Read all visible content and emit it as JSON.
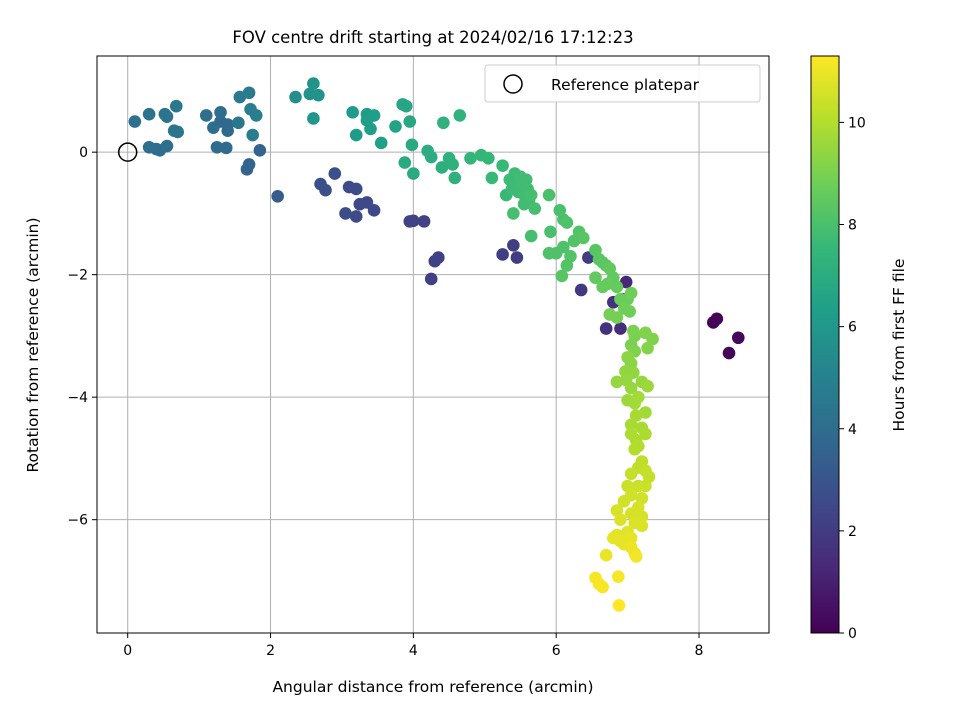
{
  "chart_data": {
    "type": "scatter",
    "title": "FOV centre drift starting at 2024/02/16 17:12:23",
    "xlabel": "Angular distance from reference (arcmin)",
    "ylabel": "Rotation from reference (arcmin)",
    "xlim": [
      -0.43,
      8.98
    ],
    "ylim": [
      -7.85,
      1.57
    ],
    "xticks": [
      0,
      2,
      4,
      6,
      8
    ],
    "yticks": [
      -6,
      -4,
      -2,
      0
    ],
    "grid": true,
    "legend": {
      "position": "top-right",
      "label": "Reference platepar"
    },
    "reference_point": {
      "x": 0.0,
      "y": 0.0
    },
    "colorbar": {
      "label": "Hours from first FF file",
      "range": [
        0,
        11.3
      ],
      "ticks": [
        0,
        2,
        4,
        6,
        8,
        10
      ],
      "colormap": "viridis",
      "stops": [
        "#440154",
        "#482878",
        "#3e4989",
        "#31688e",
        "#26828e",
        "#1f9e89",
        "#35b779",
        "#6ece58",
        "#b5de2b",
        "#fde725"
      ]
    },
    "points": [
      {
        "x": 8.25,
        "y": -2.72,
        "t": 0.1
      },
      {
        "x": 8.2,
        "y": -2.78,
        "t": 0.1
      },
      {
        "x": 8.55,
        "y": -3.03,
        "t": 0.2
      },
      {
        "x": 8.42,
        "y": -3.28,
        "t": 0.2
      },
      {
        "x": 6.98,
        "y": -2.12,
        "t": 1.3
      },
      {
        "x": 6.93,
        "y": -2.4,
        "t": 1.5
      },
      {
        "x": 6.8,
        "y": -2.45,
        "t": 1.6
      },
      {
        "x": 6.9,
        "y": -2.88,
        "t": 1.5
      },
      {
        "x": 6.7,
        "y": -2.88,
        "t": 1.6
      },
      {
        "x": 6.35,
        "y": -2.25,
        "t": 1.9
      },
      {
        "x": 6.45,
        "y": -1.72,
        "t": 2.0
      },
      {
        "x": 5.45,
        "y": -1.72,
        "t": 2.0
      },
      {
        "x": 5.4,
        "y": -1.52,
        "t": 2.1
      },
      {
        "x": 5.25,
        "y": -1.67,
        "t": 2.1
      },
      {
        "x": 4.25,
        "y": -2.07,
        "t": 2.2
      },
      {
        "x": 4.3,
        "y": -1.78,
        "t": 2.2
      },
      {
        "x": 4.35,
        "y": -1.72,
        "t": 2.2
      },
      {
        "x": 4.15,
        "y": -1.13,
        "t": 2.3
      },
      {
        "x": 3.95,
        "y": -1.13,
        "t": 2.3
      },
      {
        "x": 4.0,
        "y": -1.12,
        "t": 2.3
      },
      {
        "x": 3.45,
        "y": -0.95,
        "t": 2.5
      },
      {
        "x": 3.35,
        "y": -0.82,
        "t": 2.5
      },
      {
        "x": 3.25,
        "y": -0.85,
        "t": 2.5
      },
      {
        "x": 3.2,
        "y": -0.6,
        "t": 2.6
      },
      {
        "x": 3.1,
        "y": -0.57,
        "t": 2.6
      },
      {
        "x": 3.05,
        "y": -1.0,
        "t": 2.6
      },
      {
        "x": 3.2,
        "y": -1.05,
        "t": 2.6
      },
      {
        "x": 2.9,
        "y": -0.35,
        "t": 2.8
      },
      {
        "x": 2.7,
        "y": -0.52,
        "t": 2.8
      },
      {
        "x": 2.77,
        "y": -0.62,
        "t": 2.8
      },
      {
        "x": 2.1,
        "y": -0.72,
        "t": 3.3
      },
      {
        "x": 1.7,
        "y": -0.2,
        "t": 3.6
      },
      {
        "x": 1.67,
        "y": -0.28,
        "t": 3.6
      },
      {
        "x": 1.85,
        "y": 0.03,
        "t": 3.6
      },
      {
        "x": 1.4,
        "y": 0.35,
        "t": 3.8
      },
      {
        "x": 1.3,
        "y": 0.5,
        "t": 3.8
      },
      {
        "x": 1.4,
        "y": 0.45,
        "t": 3.8
      },
      {
        "x": 1.25,
        "y": 0.08,
        "t": 3.9
      },
      {
        "x": 1.38,
        "y": 0.07,
        "t": 3.9
      },
      {
        "x": 1.2,
        "y": 0.4,
        "t": 4.0
      },
      {
        "x": 1.3,
        "y": 0.65,
        "t": 4.0
      },
      {
        "x": 1.1,
        "y": 0.6,
        "t": 4.1
      },
      {
        "x": 0.45,
        "y": 0.03,
        "t": 4.0
      },
      {
        "x": 0.4,
        "y": 0.05,
        "t": 4.0
      },
      {
        "x": 0.55,
        "y": 0.1,
        "t": 4.1
      },
      {
        "x": 0.3,
        "y": 0.08,
        "t": 4.1
      },
      {
        "x": 0.1,
        "y": 0.5,
        "t": 4.2
      },
      {
        "x": 0.3,
        "y": 0.62,
        "t": 4.3
      },
      {
        "x": 0.52,
        "y": 0.62,
        "t": 4.3
      },
      {
        "x": 0.55,
        "y": 0.58,
        "t": 4.3
      },
      {
        "x": 0.65,
        "y": 0.35,
        "t": 4.4
      },
      {
        "x": 0.7,
        "y": 0.33,
        "t": 4.4
      },
      {
        "x": 0.68,
        "y": 0.75,
        "t": 4.5
      },
      {
        "x": 1.55,
        "y": 0.48,
        "t": 4.5
      },
      {
        "x": 1.57,
        "y": 0.9,
        "t": 4.6
      },
      {
        "x": 1.7,
        "y": 0.97,
        "t": 4.7
      },
      {
        "x": 1.72,
        "y": 0.7,
        "t": 4.8
      },
      {
        "x": 1.8,
        "y": 0.6,
        "t": 4.8
      },
      {
        "x": 1.75,
        "y": 0.28,
        "t": 4.8
      },
      {
        "x": 2.35,
        "y": 0.9,
        "t": 5.6
      },
      {
        "x": 2.55,
        "y": 0.95,
        "t": 5.7
      },
      {
        "x": 2.6,
        "y": 1.12,
        "t": 5.8
      },
      {
        "x": 2.67,
        "y": 0.93,
        "t": 5.8
      },
      {
        "x": 2.6,
        "y": 0.55,
        "t": 5.9
      },
      {
        "x": 3.15,
        "y": 0.65,
        "t": 6.1
      },
      {
        "x": 3.2,
        "y": 0.28,
        "t": 6.2
      },
      {
        "x": 3.35,
        "y": 0.62,
        "t": 6.2
      },
      {
        "x": 3.35,
        "y": 0.52,
        "t": 6.3
      },
      {
        "x": 3.4,
        "y": 0.38,
        "t": 6.3
      },
      {
        "x": 3.45,
        "y": 0.6,
        "t": 6.3
      },
      {
        "x": 3.55,
        "y": 0.15,
        "t": 6.4
      },
      {
        "x": 3.75,
        "y": 0.42,
        "t": 6.5
      },
      {
        "x": 3.85,
        "y": 0.78,
        "t": 6.7
      },
      {
        "x": 3.9,
        "y": 0.75,
        "t": 6.7
      },
      {
        "x": 3.95,
        "y": 0.5,
        "t": 6.8
      },
      {
        "x": 3.88,
        "y": -0.17,
        "t": 6.9
      },
      {
        "x": 4.0,
        "y": -0.35,
        "t": 6.9
      },
      {
        "x": 3.98,
        "y": 0.12,
        "t": 6.9
      },
      {
        "x": 4.2,
        "y": 0.02,
        "t": 7.0
      },
      {
        "x": 4.25,
        "y": -0.08,
        "t": 7.0
      },
      {
        "x": 4.4,
        "y": -0.25,
        "t": 7.1
      },
      {
        "x": 4.42,
        "y": 0.48,
        "t": 7.2
      },
      {
        "x": 4.5,
        "y": -0.1,
        "t": 7.2
      },
      {
        "x": 4.55,
        "y": -0.2,
        "t": 7.2
      },
      {
        "x": 4.58,
        "y": -0.42,
        "t": 7.2
      },
      {
        "x": 4.65,
        "y": 0.6,
        "t": 7.3
      },
      {
        "x": 4.8,
        "y": -0.1,
        "t": 7.4
      },
      {
        "x": 4.95,
        "y": -0.05,
        "t": 7.5
      },
      {
        "x": 5.05,
        "y": -0.1,
        "t": 7.5
      },
      {
        "x": 5.1,
        "y": -0.42,
        "t": 7.6
      },
      {
        "x": 5.25,
        "y": -0.22,
        "t": 7.6
      },
      {
        "x": 5.3,
        "y": -0.7,
        "t": 7.6
      },
      {
        "x": 5.35,
        "y": -0.45,
        "t": 7.7
      },
      {
        "x": 5.38,
        "y": -0.6,
        "t": 7.7
      },
      {
        "x": 5.42,
        "y": -0.35,
        "t": 7.7
      },
      {
        "x": 5.45,
        "y": -0.5,
        "t": 7.7
      },
      {
        "x": 5.47,
        "y": -0.65,
        "t": 7.7
      },
      {
        "x": 5.5,
        "y": -0.4,
        "t": 7.8
      },
      {
        "x": 5.52,
        "y": -0.55,
        "t": 7.8
      },
      {
        "x": 5.55,
        "y": -0.7,
        "t": 7.8
      },
      {
        "x": 5.55,
        "y": -0.85,
        "t": 7.8
      },
      {
        "x": 5.58,
        "y": -0.45,
        "t": 7.8
      },
      {
        "x": 5.6,
        "y": -0.6,
        "t": 7.8
      },
      {
        "x": 5.62,
        "y": -0.78,
        "t": 7.8
      },
      {
        "x": 5.65,
        "y": -0.7,
        "t": 7.9
      },
      {
        "x": 5.4,
        "y": -1.0,
        "t": 7.9
      },
      {
        "x": 5.7,
        "y": -0.92,
        "t": 7.9
      },
      {
        "x": 5.65,
        "y": -1.37,
        "t": 7.9
      },
      {
        "x": 5.9,
        "y": -0.7,
        "t": 8.0
      },
      {
        "x": 5.92,
        "y": -1.3,
        "t": 8.0
      },
      {
        "x": 6.05,
        "y": -0.95,
        "t": 8.0
      },
      {
        "x": 6.1,
        "y": -1.1,
        "t": 8.0
      },
      {
        "x": 6.15,
        "y": -1.15,
        "t": 8.1
      },
      {
        "x": 5.9,
        "y": -1.65,
        "t": 8.1
      },
      {
        "x": 6.0,
        "y": -1.65,
        "t": 8.1
      },
      {
        "x": 6.1,
        "y": -1.55,
        "t": 8.1
      },
      {
        "x": 6.2,
        "y": -1.7,
        "t": 8.2
      },
      {
        "x": 6.15,
        "y": -1.85,
        "t": 8.2
      },
      {
        "x": 6.25,
        "y": -1.45,
        "t": 8.2
      },
      {
        "x": 6.32,
        "y": -1.3,
        "t": 8.2
      },
      {
        "x": 6.38,
        "y": -1.4,
        "t": 8.3
      },
      {
        "x": 6.08,
        "y": -2.02,
        "t": 8.3
      },
      {
        "x": 6.55,
        "y": -1.6,
        "t": 8.3
      },
      {
        "x": 6.6,
        "y": -1.75,
        "t": 8.4
      },
      {
        "x": 6.65,
        "y": -1.8,
        "t": 8.4
      },
      {
        "x": 6.7,
        "y": -1.85,
        "t": 8.4
      },
      {
        "x": 6.75,
        "y": -1.9,
        "t": 8.5
      },
      {
        "x": 6.8,
        "y": -2.05,
        "t": 8.5
      },
      {
        "x": 6.55,
        "y": -2.05,
        "t": 8.5
      },
      {
        "x": 6.65,
        "y": -2.2,
        "t": 8.6
      },
      {
        "x": 6.72,
        "y": -2.15,
        "t": 8.6
      },
      {
        "x": 6.85,
        "y": -2.2,
        "t": 8.6
      },
      {
        "x": 6.9,
        "y": -2.4,
        "t": 8.7
      },
      {
        "x": 7.0,
        "y": -2.4,
        "t": 8.7
      },
      {
        "x": 7.05,
        "y": -2.3,
        "t": 8.8
      },
      {
        "x": 6.95,
        "y": -2.55,
        "t": 8.8
      },
      {
        "x": 7.03,
        "y": -2.6,
        "t": 8.8
      },
      {
        "x": 6.75,
        "y": -2.65,
        "t": 8.9
      },
      {
        "x": 6.85,
        "y": -2.7,
        "t": 8.9
      },
      {
        "x": 7.08,
        "y": -2.92,
        "t": 9.0
      },
      {
        "x": 7.1,
        "y": -3.0,
        "t": 9.0
      },
      {
        "x": 7.05,
        "y": -3.15,
        "t": 9.0
      },
      {
        "x": 7.1,
        "y": -3.25,
        "t": 9.1
      },
      {
        "x": 7.25,
        "y": -2.95,
        "t": 9.1
      },
      {
        "x": 7.35,
        "y": -3.05,
        "t": 9.1
      },
      {
        "x": 7.28,
        "y": -3.2,
        "t": 9.2
      },
      {
        "x": 7.0,
        "y": -3.35,
        "t": 9.3
      },
      {
        "x": 7.05,
        "y": -3.45,
        "t": 9.3
      },
      {
        "x": 6.97,
        "y": -3.58,
        "t": 9.4
      },
      {
        "x": 7.08,
        "y": -3.6,
        "t": 9.4
      },
      {
        "x": 6.85,
        "y": -3.75,
        "t": 9.5
      },
      {
        "x": 6.98,
        "y": -3.72,
        "t": 9.5
      },
      {
        "x": 7.05,
        "y": -3.85,
        "t": 9.5
      },
      {
        "x": 7.2,
        "y": -3.75,
        "t": 9.5
      },
      {
        "x": 7.28,
        "y": -3.82,
        "t": 9.6
      },
      {
        "x": 7.0,
        "y": -4.05,
        "t": 9.6
      },
      {
        "x": 7.1,
        "y": -4.1,
        "t": 9.7
      },
      {
        "x": 7.15,
        "y": -4.0,
        "t": 9.7
      },
      {
        "x": 7.25,
        "y": -4.25,
        "t": 9.7
      },
      {
        "x": 7.12,
        "y": -4.3,
        "t": 9.8
      },
      {
        "x": 7.05,
        "y": -4.45,
        "t": 9.8
      },
      {
        "x": 7.2,
        "y": -4.5,
        "t": 9.8
      },
      {
        "x": 7.05,
        "y": -4.6,
        "t": 9.9
      },
      {
        "x": 7.12,
        "y": -4.7,
        "t": 9.9
      },
      {
        "x": 7.25,
        "y": -4.6,
        "t": 9.9
      },
      {
        "x": 7.15,
        "y": -4.8,
        "t": 10.0
      },
      {
        "x": 7.1,
        "y": -4.85,
        "t": 10.0
      },
      {
        "x": 7.2,
        "y": -5.05,
        "t": 10.2
      },
      {
        "x": 7.15,
        "y": -5.15,
        "t": 10.2
      },
      {
        "x": 7.25,
        "y": -5.2,
        "t": 10.3
      },
      {
        "x": 7.05,
        "y": -5.25,
        "t": 10.3
      },
      {
        "x": 7.3,
        "y": -5.3,
        "t": 10.3
      },
      {
        "x": 7.0,
        "y": -5.45,
        "t": 10.4
      },
      {
        "x": 7.15,
        "y": -5.45,
        "t": 10.4
      },
      {
        "x": 7.25,
        "y": -5.45,
        "t": 10.4
      },
      {
        "x": 7.05,
        "y": -5.6,
        "t": 10.5
      },
      {
        "x": 7.2,
        "y": -5.65,
        "t": 10.5
      },
      {
        "x": 6.95,
        "y": -5.7,
        "t": 10.5
      },
      {
        "x": 7.15,
        "y": -5.8,
        "t": 10.6
      },
      {
        "x": 6.85,
        "y": -5.85,
        "t": 10.6
      },
      {
        "x": 7.05,
        "y": -5.9,
        "t": 10.6
      },
      {
        "x": 7.2,
        "y": -5.95,
        "t": 10.6
      },
      {
        "x": 6.9,
        "y": -6.0,
        "t": 10.7
      },
      {
        "x": 7.1,
        "y": -6.05,
        "t": 10.7
      },
      {
        "x": 7.2,
        "y": -6.1,
        "t": 10.7
      },
      {
        "x": 7.0,
        "y": -6.2,
        "t": 10.8
      },
      {
        "x": 6.85,
        "y": -6.25,
        "t": 10.8
      },
      {
        "x": 7.05,
        "y": -6.3,
        "t": 10.9
      },
      {
        "x": 6.8,
        "y": -6.3,
        "t": 10.9
      },
      {
        "x": 6.9,
        "y": -6.35,
        "t": 10.9
      },
      {
        "x": 6.95,
        "y": -6.4,
        "t": 10.9
      },
      {
        "x": 7.05,
        "y": -6.45,
        "t": 11.0
      },
      {
        "x": 7.1,
        "y": -6.55,
        "t": 11.0
      },
      {
        "x": 6.7,
        "y": -6.58,
        "t": 11.0
      },
      {
        "x": 7.12,
        "y": -6.6,
        "t": 11.1
      },
      {
        "x": 6.55,
        "y": -6.95,
        "t": 11.2
      },
      {
        "x": 6.6,
        "y": -7.05,
        "t": 11.2
      },
      {
        "x": 6.65,
        "y": -7.1,
        "t": 11.2
      },
      {
        "x": 6.87,
        "y": -6.93,
        "t": 11.2
      },
      {
        "x": 6.88,
        "y": -7.4,
        "t": 11.3
      }
    ]
  }
}
